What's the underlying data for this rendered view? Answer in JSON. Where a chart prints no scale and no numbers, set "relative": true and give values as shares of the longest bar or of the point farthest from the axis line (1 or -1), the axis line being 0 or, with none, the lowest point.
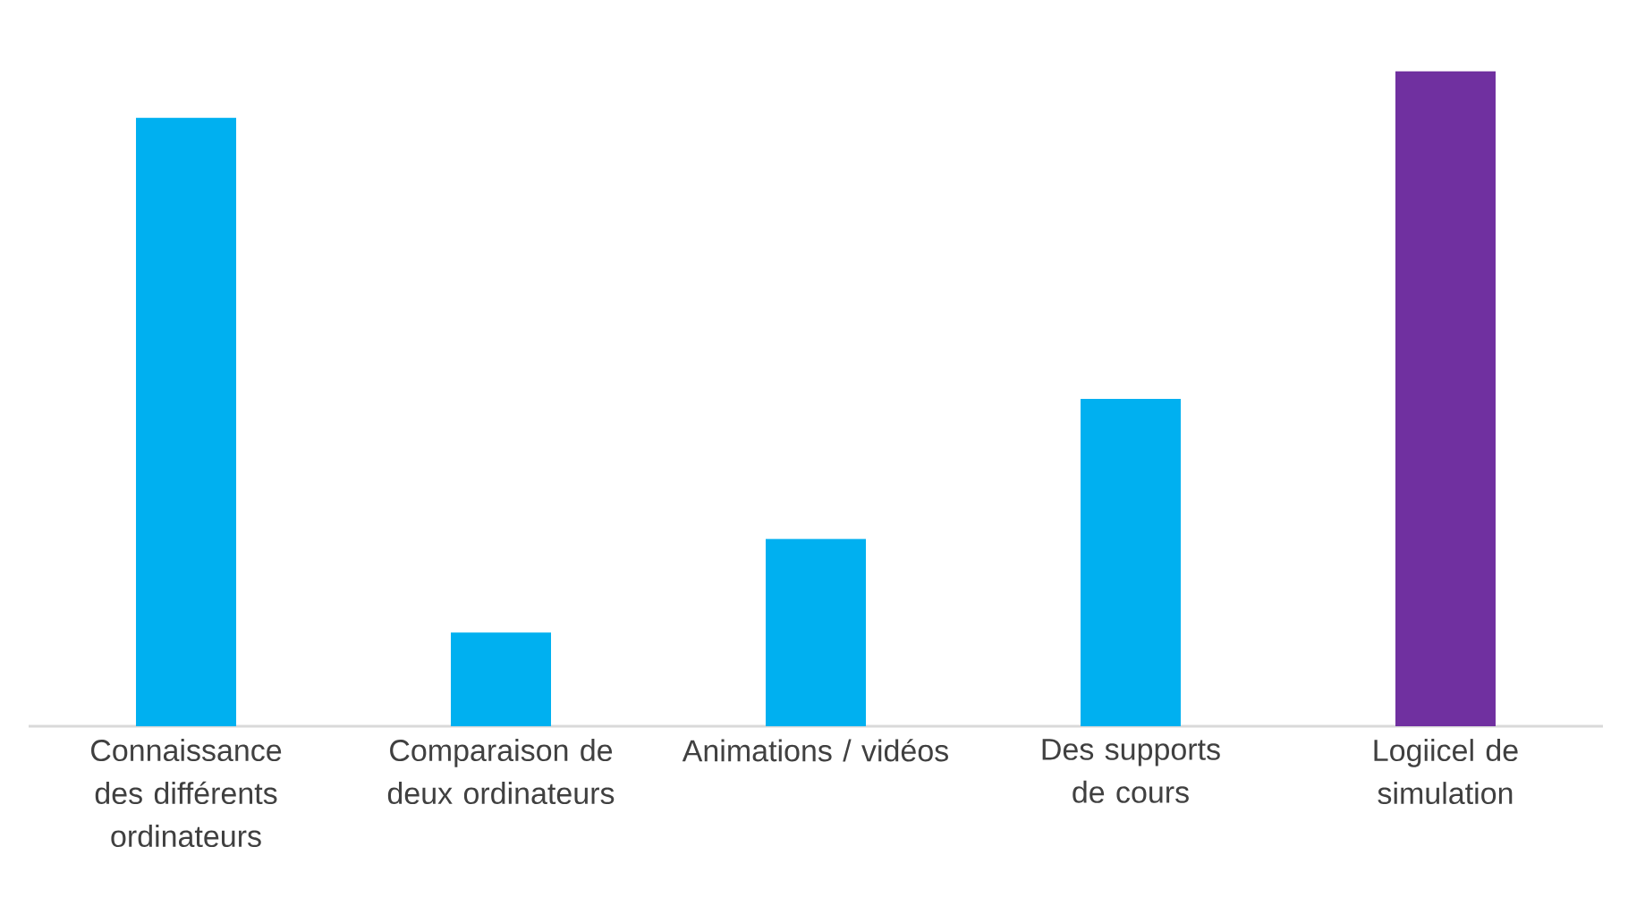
{
  "chart_data": {
    "type": "bar",
    "relative": true,
    "categories": [
      "Connaissance des différents ordinateurs",
      "Comparaison de deux ordinateurs",
      "Animations / vidéos",
      "Des supports de cours",
      "Logiicel de simulation"
    ],
    "values": [
      0.929,
      0.143,
      0.286,
      0.5,
      1.0
    ],
    "colors": [
      "#00b0f0",
      "#00b0f0",
      "#00b0f0",
      "#00b0f0",
      "#7030a0"
    ]
  }
}
